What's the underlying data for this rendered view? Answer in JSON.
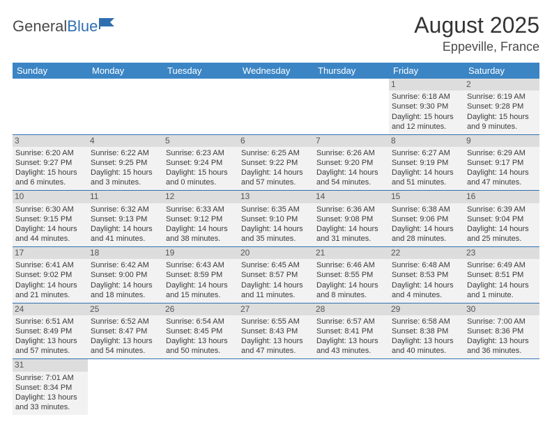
{
  "brand": {
    "name1": "General",
    "name2": "Blue"
  },
  "title": "August 2025",
  "location": "Eppeville, France",
  "colors": {
    "header_bg": "#3b85c5",
    "header_text": "#ffffff",
    "row_bg": "#f2f2f2",
    "daynum_bg": "#dddddd",
    "border": "#2f6fb0",
    "brand_blue": "#2f6fb0",
    "text": "#3a3a3a"
  },
  "weekdays": [
    "Sunday",
    "Monday",
    "Tuesday",
    "Wednesday",
    "Thursday",
    "Friday",
    "Saturday"
  ],
  "weeks": [
    [
      null,
      null,
      null,
      null,
      null,
      {
        "d": "1",
        "sr": "6:18 AM",
        "ss": "9:30 PM",
        "dl": "15 hours and 12 minutes."
      },
      {
        "d": "2",
        "sr": "6:19 AM",
        "ss": "9:28 PM",
        "dl": "15 hours and 9 minutes."
      }
    ],
    [
      {
        "d": "3",
        "sr": "6:20 AM",
        "ss": "9:27 PM",
        "dl": "15 hours and 6 minutes."
      },
      {
        "d": "4",
        "sr": "6:22 AM",
        "ss": "9:25 PM",
        "dl": "15 hours and 3 minutes."
      },
      {
        "d": "5",
        "sr": "6:23 AM",
        "ss": "9:24 PM",
        "dl": "15 hours and 0 minutes."
      },
      {
        "d": "6",
        "sr": "6:25 AM",
        "ss": "9:22 PM",
        "dl": "14 hours and 57 minutes."
      },
      {
        "d": "7",
        "sr": "6:26 AM",
        "ss": "9:20 PM",
        "dl": "14 hours and 54 minutes."
      },
      {
        "d": "8",
        "sr": "6:27 AM",
        "ss": "9:19 PM",
        "dl": "14 hours and 51 minutes."
      },
      {
        "d": "9",
        "sr": "6:29 AM",
        "ss": "9:17 PM",
        "dl": "14 hours and 47 minutes."
      }
    ],
    [
      {
        "d": "10",
        "sr": "6:30 AM",
        "ss": "9:15 PM",
        "dl": "14 hours and 44 minutes."
      },
      {
        "d": "11",
        "sr": "6:32 AM",
        "ss": "9:13 PM",
        "dl": "14 hours and 41 minutes."
      },
      {
        "d": "12",
        "sr": "6:33 AM",
        "ss": "9:12 PM",
        "dl": "14 hours and 38 minutes."
      },
      {
        "d": "13",
        "sr": "6:35 AM",
        "ss": "9:10 PM",
        "dl": "14 hours and 35 minutes."
      },
      {
        "d": "14",
        "sr": "6:36 AM",
        "ss": "9:08 PM",
        "dl": "14 hours and 31 minutes."
      },
      {
        "d": "15",
        "sr": "6:38 AM",
        "ss": "9:06 PM",
        "dl": "14 hours and 28 minutes."
      },
      {
        "d": "16",
        "sr": "6:39 AM",
        "ss": "9:04 PM",
        "dl": "14 hours and 25 minutes."
      }
    ],
    [
      {
        "d": "17",
        "sr": "6:41 AM",
        "ss": "9:02 PM",
        "dl": "14 hours and 21 minutes."
      },
      {
        "d": "18",
        "sr": "6:42 AM",
        "ss": "9:00 PM",
        "dl": "14 hours and 18 minutes."
      },
      {
        "d": "19",
        "sr": "6:43 AM",
        "ss": "8:59 PM",
        "dl": "14 hours and 15 minutes."
      },
      {
        "d": "20",
        "sr": "6:45 AM",
        "ss": "8:57 PM",
        "dl": "14 hours and 11 minutes."
      },
      {
        "d": "21",
        "sr": "6:46 AM",
        "ss": "8:55 PM",
        "dl": "14 hours and 8 minutes."
      },
      {
        "d": "22",
        "sr": "6:48 AM",
        "ss": "8:53 PM",
        "dl": "14 hours and 4 minutes."
      },
      {
        "d": "23",
        "sr": "6:49 AM",
        "ss": "8:51 PM",
        "dl": "14 hours and 1 minute."
      }
    ],
    [
      {
        "d": "24",
        "sr": "6:51 AM",
        "ss": "8:49 PM",
        "dl": "13 hours and 57 minutes."
      },
      {
        "d": "25",
        "sr": "6:52 AM",
        "ss": "8:47 PM",
        "dl": "13 hours and 54 minutes."
      },
      {
        "d": "26",
        "sr": "6:54 AM",
        "ss": "8:45 PM",
        "dl": "13 hours and 50 minutes."
      },
      {
        "d": "27",
        "sr": "6:55 AM",
        "ss": "8:43 PM",
        "dl": "13 hours and 47 minutes."
      },
      {
        "d": "28",
        "sr": "6:57 AM",
        "ss": "8:41 PM",
        "dl": "13 hours and 43 minutes."
      },
      {
        "d": "29",
        "sr": "6:58 AM",
        "ss": "8:38 PM",
        "dl": "13 hours and 40 minutes."
      },
      {
        "d": "30",
        "sr": "7:00 AM",
        "ss": "8:36 PM",
        "dl": "13 hours and 36 minutes."
      }
    ],
    [
      {
        "d": "31",
        "sr": "7:01 AM",
        "ss": "8:34 PM",
        "dl": "13 hours and 33 minutes."
      },
      null,
      null,
      null,
      null,
      null,
      null
    ]
  ],
  "labels": {
    "sunrise": "Sunrise:",
    "sunset": "Sunset:",
    "daylight": "Daylight:"
  }
}
